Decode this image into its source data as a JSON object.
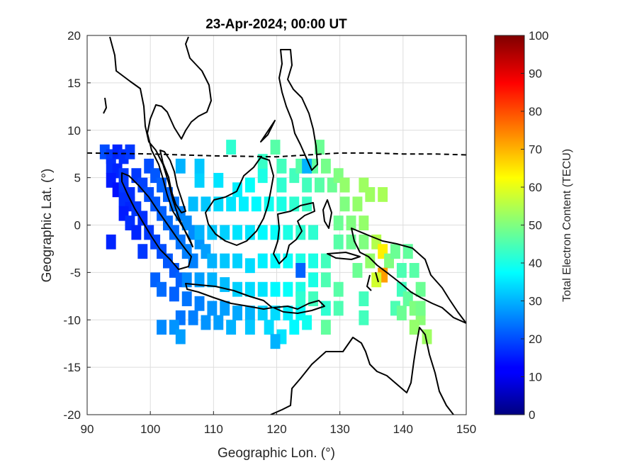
{
  "map": {
    "title": "23-Apr-2024; 00:00 UT",
    "xlabel": "Geographic Lon. (°)",
    "ylabel": "Geographic Lat. (°)",
    "xlim": [
      90,
      150
    ],
    "ylim": [
      -20,
      20
    ],
    "x_ticks": [
      "90",
      "100",
      "110",
      "120",
      "130",
      "140",
      "150"
    ],
    "y_ticks": [
      "20",
      "15",
      "10",
      "5",
      "0",
      "-5",
      "-10",
      "-15",
      "-20"
    ],
    "grid": true,
    "colormap": "jet",
    "colorbar": {
      "label": "Total Electron Content (TECU)",
      "range": [
        0,
        100
      ],
      "ticks": [
        "0",
        "10",
        "20",
        "30",
        "40",
        "50",
        "60",
        "70",
        "80",
        "90",
        "100"
      ]
    },
    "magnetic_equator_style": "dashed",
    "coastline_color": "#000000"
  },
  "chart_data": {
    "type": "heatmap",
    "title": "23-Apr-2024; 00:00 UT",
    "xlabel": "Geographic Lon. (°)",
    "ylabel": "Geographic Lat. (°)",
    "xlim": [
      90,
      150
    ],
    "ylim": [
      -20,
      20
    ],
    "value_label": "Total Electron Content (TECU)",
    "value_range": [
      0,
      100
    ],
    "tec_cells_lon_lat_tecu": [
      [
        93,
        7.5,
        20
      ],
      [
        94,
        7,
        18
      ],
      [
        95,
        7.5,
        16
      ],
      [
        96,
        7,
        17
      ],
      [
        97,
        7.5,
        18
      ],
      [
        94,
        6,
        17
      ],
      [
        95,
        5.5,
        16
      ],
      [
        96,
        5,
        18
      ],
      [
        94,
        4.5,
        15
      ],
      [
        95,
        3.5,
        14
      ],
      [
        96,
        2.5,
        17
      ],
      [
        97,
        2,
        16
      ],
      [
        96,
        1,
        15
      ],
      [
        97,
        0,
        17
      ],
      [
        98,
        -1,
        16
      ],
      [
        96,
        4,
        18
      ],
      [
        97,
        3,
        17
      ],
      [
        98,
        1.5,
        18
      ],
      [
        99,
        0.5,
        17
      ],
      [
        100,
        -1,
        18
      ],
      [
        101,
        -2,
        19
      ],
      [
        102,
        -3,
        20
      ],
      [
        103,
        -4,
        21
      ],
      [
        104,
        -5,
        21
      ],
      [
        105,
        -6,
        22
      ],
      [
        98,
        5,
        18
      ],
      [
        99,
        4,
        19
      ],
      [
        100,
        3,
        20
      ],
      [
        101,
        2,
        21
      ],
      [
        102,
        1,
        22
      ],
      [
        103,
        0,
        23
      ],
      [
        104,
        -1,
        23
      ],
      [
        105,
        -2,
        24
      ],
      [
        106,
        -3,
        25
      ],
      [
        107,
        -4,
        25
      ],
      [
        100,
        6,
        20
      ],
      [
        101,
        5,
        21
      ],
      [
        102,
        4,
        22
      ],
      [
        103,
        3,
        22
      ],
      [
        104,
        2,
        24
      ],
      [
        105,
        1,
        25
      ],
      [
        106,
        0,
        26
      ],
      [
        107,
        -1,
        26
      ],
      [
        108,
        -2,
        27
      ],
      [
        109,
        -3,
        28
      ],
      [
        94,
        -2,
        16
      ],
      [
        99,
        -3,
        18
      ],
      [
        101,
        -6,
        22
      ],
      [
        102,
        -7,
        23
      ],
      [
        104,
        -7.5,
        22
      ],
      [
        106,
        -8,
        24
      ],
      [
        108,
        -8.5,
        25
      ],
      [
        110,
        -9,
        27
      ],
      [
        112,
        -9,
        28
      ],
      [
        114,
        -9.5,
        29
      ],
      [
        116,
        -9.5,
        30
      ],
      [
        118,
        -9.5,
        33
      ],
      [
        120,
        -9.5,
        34
      ],
      [
        122,
        -9.5,
        36
      ],
      [
        124,
        -9.5,
        38
      ],
      [
        105,
        -10,
        24
      ],
      [
        107,
        -10,
        25
      ],
      [
        109,
        -10.5,
        27
      ],
      [
        111,
        -10.5,
        28
      ],
      [
        113,
        -11,
        30
      ],
      [
        116,
        -11,
        32
      ],
      [
        119,
        -11,
        34
      ],
      [
        121,
        -12,
        35
      ],
      [
        123,
        -11,
        37
      ],
      [
        125,
        -10.5,
        39
      ],
      [
        104,
        -11,
        27
      ],
      [
        105,
        -12,
        28
      ],
      [
        102,
        -11,
        26
      ],
      [
        120,
        -12.5,
        30
      ],
      [
        106,
        -6,
        26
      ],
      [
        108,
        -6,
        28
      ],
      [
        110,
        -6,
        30
      ],
      [
        112,
        -6.5,
        31
      ],
      [
        114,
        -7,
        33
      ],
      [
        116,
        -7,
        34
      ],
      [
        118,
        -7,
        35
      ],
      [
        120,
        -7,
        37
      ],
      [
        122,
        -7,
        38
      ],
      [
        124,
        -7,
        40
      ],
      [
        110,
        -4,
        30
      ],
      [
        112,
        -4,
        32
      ],
      [
        114,
        -4,
        33
      ],
      [
        116,
        -4.5,
        34
      ],
      [
        118,
        -4,
        36
      ],
      [
        120,
        -4,
        37
      ],
      [
        122,
        -4,
        38
      ],
      [
        124,
        -4,
        40
      ],
      [
        126,
        -4,
        40
      ],
      [
        128,
        -4,
        44
      ],
      [
        108,
        -1,
        30
      ],
      [
        110,
        -1,
        32
      ],
      [
        112,
        -1,
        33
      ],
      [
        114,
        -1,
        35
      ],
      [
        116,
        -1,
        35
      ],
      [
        118,
        -1,
        37
      ],
      [
        120,
        -1,
        38
      ],
      [
        122,
        -1,
        40
      ],
      [
        124,
        -1,
        42
      ],
      [
        126,
        -1,
        42
      ],
      [
        107,
        2,
        31
      ],
      [
        109,
        2,
        32
      ],
      [
        111,
        2,
        34
      ],
      [
        113,
        2,
        35
      ],
      [
        115,
        2,
        36
      ],
      [
        117,
        2,
        37
      ],
      [
        119,
        2,
        39
      ],
      [
        121,
        2,
        40
      ],
      [
        123,
        2,
        42
      ],
      [
        125,
        2,
        43
      ],
      [
        108,
        4.5,
        33
      ],
      [
        111,
        4.5,
        35
      ],
      [
        114,
        3.5,
        36
      ],
      [
        116,
        4,
        38
      ],
      [
        118,
        5,
        40
      ],
      [
        121,
        4,
        42
      ],
      [
        123,
        5,
        44
      ],
      [
        125,
        4,
        44
      ],
      [
        127,
        4,
        46
      ],
      [
        129,
        4,
        48
      ],
      [
        105,
        6,
        30
      ],
      [
        108,
        6,
        32
      ],
      [
        118,
        6.5,
        43
      ],
      [
        121,
        6,
        44
      ],
      [
        124,
        6,
        46
      ],
      [
        126,
        6,
        47
      ],
      [
        128,
        6,
        49
      ],
      [
        130,
        5,
        50
      ],
      [
        120,
        8,
        46
      ],
      [
        127,
        8,
        48
      ],
      [
        113,
        8,
        42
      ],
      [
        125,
        6,
        30
      ],
      [
        124,
        -5,
        22
      ],
      [
        126,
        -6,
        40
      ],
      [
        128,
        -6,
        45
      ],
      [
        130,
        0,
        48
      ],
      [
        132,
        0,
        50
      ],
      [
        134,
        0,
        52
      ],
      [
        131,
        2,
        50
      ],
      [
        133,
        2,
        52
      ],
      [
        135,
        3,
        53
      ],
      [
        137,
        3,
        54
      ],
      [
        131,
        4,
        52
      ],
      [
        134,
        4,
        53
      ],
      [
        130,
        -2,
        46
      ],
      [
        132,
        -2,
        48
      ],
      [
        134,
        -2,
        50
      ],
      [
        136,
        -2,
        55
      ],
      [
        137,
        -3,
        64
      ],
      [
        138,
        -4,
        50
      ],
      [
        137,
        -5.5,
        72
      ],
      [
        136,
        -6,
        58
      ],
      [
        135,
        -4,
        52
      ],
      [
        139,
        -3,
        48
      ],
      [
        141,
        -3,
        47
      ],
      [
        140,
        -5,
        45
      ],
      [
        142,
        -5,
        46
      ],
      [
        143,
        -7,
        48
      ],
      [
        140,
        -7,
        44
      ],
      [
        141,
        -8,
        47
      ],
      [
        139,
        -9,
        45
      ],
      [
        140,
        -9.5,
        48
      ],
      [
        142,
        -9,
        50
      ],
      [
        143,
        -10,
        51
      ],
      [
        134,
        -8,
        44
      ],
      [
        133,
        -5,
        48
      ],
      [
        130,
        -7,
        46
      ],
      [
        128,
        -9,
        42
      ],
      [
        124,
        -8,
        42
      ],
      [
        126,
        -8,
        44
      ],
      [
        142,
        -11,
        52
      ],
      [
        144,
        -12,
        53
      ],
      [
        143,
        -9,
        49
      ],
      [
        130,
        -9,
        45
      ],
      [
        128,
        -11,
        47
      ],
      [
        134,
        -10,
        44
      ]
    ],
    "magnetic_equator_lon_lat": [
      [
        90,
        7.6
      ],
      [
        100,
        7.5
      ],
      [
        110,
        7.3
      ],
      [
        120,
        7.2
      ],
      [
        125,
        7.4
      ],
      [
        130,
        7.6
      ],
      [
        135,
        7.6
      ],
      [
        140,
        7.5
      ],
      [
        145,
        7.5
      ],
      [
        150,
        7.4
      ]
    ]
  }
}
